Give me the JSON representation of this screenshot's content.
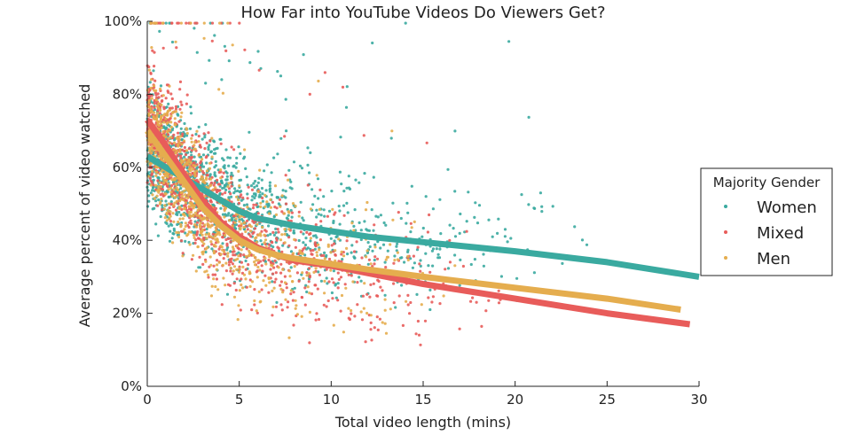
{
  "chart_data": {
    "type": "scatter",
    "title": "How Far into YouTube Videos Do Viewers Get?",
    "xlabel": "Total video length (mins)",
    "ylabel": "Average percent of video watched",
    "xlim": [
      0,
      30
    ],
    "ylim": [
      0,
      100
    ],
    "x_ticks": [
      "0",
      "5",
      "10",
      "15",
      "20",
      "25",
      "30"
    ],
    "y_ticks": [
      "0%",
      "20%",
      "40%",
      "60%",
      "80%",
      "100%"
    ],
    "grid": false,
    "legend": {
      "title": "Majority Gender",
      "position": "right",
      "entries": [
        "Women",
        "Mixed",
        "Men"
      ]
    },
    "series": [
      {
        "name": "Women",
        "color": "#3aaaa0",
        "trend": [
          [
            0,
            63
          ],
          [
            1,
            60
          ],
          [
            2,
            57
          ],
          [
            3,
            54
          ],
          [
            4,
            51
          ],
          [
            5,
            48
          ],
          [
            6,
            46
          ],
          [
            7,
            45
          ],
          [
            8,
            44
          ],
          [
            10,
            42.5
          ],
          [
            12,
            41
          ],
          [
            15,
            39.5
          ],
          [
            20,
            37
          ],
          [
            25,
            34
          ],
          [
            30,
            30
          ]
        ],
        "cluster": {
          "x_peak": 5,
          "y_level": "trend",
          "count": 1300
        }
      },
      {
        "name": "Mixed",
        "color": "#e85c5a",
        "trend": [
          [
            0,
            73
          ],
          [
            1,
            66
          ],
          [
            2,
            58
          ],
          [
            3,
            51
          ],
          [
            4,
            45
          ],
          [
            5,
            41
          ],
          [
            6,
            38
          ],
          [
            7,
            36
          ],
          [
            8,
            34.5
          ],
          [
            10,
            33
          ],
          [
            12,
            31
          ],
          [
            15,
            28
          ],
          [
            20,
            24
          ],
          [
            25,
            20
          ],
          [
            29.5,
            17
          ]
        ],
        "cluster": {
          "x_peak": 4,
          "y_level": "trend",
          "count": 1100
        }
      },
      {
        "name": "Men",
        "color": "#e5ad4e",
        "trend": [
          [
            0,
            70
          ],
          [
            1,
            63
          ],
          [
            2,
            56
          ],
          [
            3,
            49
          ],
          [
            4,
            44
          ],
          [
            5,
            40
          ],
          [
            6,
            37.5
          ],
          [
            7,
            36
          ],
          [
            8,
            35
          ],
          [
            10,
            33.5
          ],
          [
            12,
            32
          ],
          [
            15,
            30
          ],
          [
            20,
            27
          ],
          [
            25,
            24
          ],
          [
            29,
            21
          ]
        ],
        "cluster": {
          "x_peak": 3.5,
          "y_level": "trend",
          "count": 900
        }
      }
    ]
  }
}
